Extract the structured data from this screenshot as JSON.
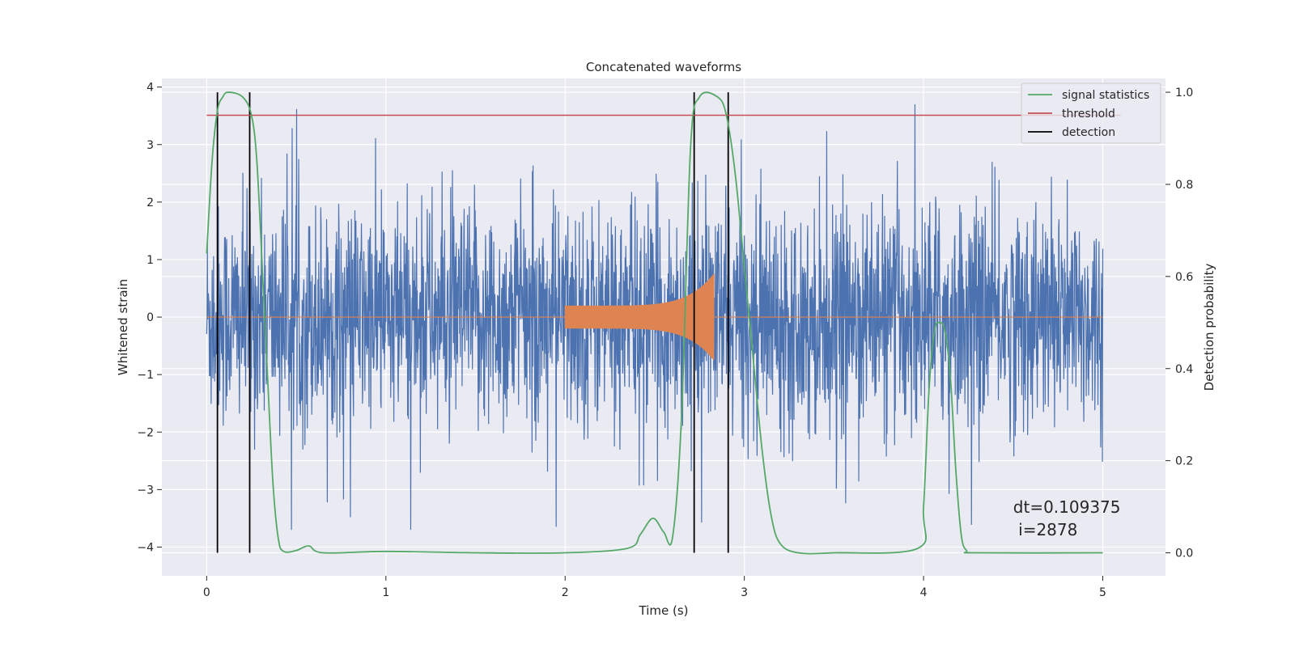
{
  "chart_data": {
    "type": "line",
    "title": "Concatenated waveforms",
    "xlabel": "Time (s)",
    "ylabel": "Whitened strain",
    "ylabel_right": "Detection probability",
    "xlim": [
      -0.25,
      5.35
    ],
    "ylim": [
      -4.5,
      4.15
    ],
    "ylim_right": [
      -0.05,
      1.03
    ],
    "x_ticks": [
      0,
      1,
      2,
      3,
      4,
      5
    ],
    "x_tick_labels": [
      "0",
      "1",
      "2",
      "3",
      "4",
      "5"
    ],
    "y_ticks": [
      -4,
      -3,
      -2,
      -1,
      0,
      1,
      2,
      3,
      4
    ],
    "y_tick_labels": [
      "−4",
      "−3",
      "−2",
      "−1",
      "0",
      "1",
      "2",
      "3",
      "4"
    ],
    "y_right_ticks": [
      0.0,
      0.2,
      0.4,
      0.6,
      0.8,
      1.0
    ],
    "y_right_tick_labels": [
      "0.0",
      "0.2",
      "0.4",
      "0.6",
      "0.8",
      "1.0"
    ],
    "grid": true,
    "legend_position": "top-right",
    "series": [
      {
        "name": "",
        "kind": "noisy-strain",
        "color": "#4c72b0",
        "x_range": [
          0,
          5
        ],
        "max_abs_amplitude": 3.7
      },
      {
        "name": "",
        "kind": "chirp-injection",
        "color": "#dd8452",
        "x_range": [
          0,
          5
        ],
        "chirp_start": 2.0,
        "chirp_end": 2.83,
        "amplitude_start": 0.2,
        "amplitude_end": 0.75
      },
      {
        "name": "signal statistics",
        "axis": "right",
        "color": "#55a868",
        "x": [
          0,
          0.03,
          0.06,
          0.09,
          0.12,
          0.2,
          0.25,
          0.28,
          0.31,
          0.34,
          0.37,
          0.4,
          0.43,
          0.5,
          0.57,
          0.65,
          1.0,
          1.5,
          2.0,
          2.35,
          2.42,
          2.49,
          2.55,
          2.6,
          2.65,
          2.7,
          2.75,
          2.85,
          2.9,
          2.95,
          3.0,
          3.05,
          3.1,
          3.15,
          3.2,
          3.3,
          3.5,
          3.97,
          4.0,
          4.03,
          4.06,
          4.09,
          4.12,
          4.15,
          4.18,
          4.21,
          4.24,
          4.3,
          5.0
        ],
        "y": [
          0.65,
          0.85,
          0.96,
          0.99,
          1.0,
          0.99,
          0.95,
          0.85,
          0.62,
          0.38,
          0.15,
          0.03,
          0.003,
          0.005,
          0.015,
          0.0,
          0.003,
          0.0,
          0.0,
          0.01,
          0.04,
          0.075,
          0.045,
          0.035,
          0.3,
          0.88,
          0.99,
          0.99,
          0.95,
          0.82,
          0.62,
          0.42,
          0.22,
          0.08,
          0.02,
          0.0,
          0.0,
          0.01,
          0.1,
          0.35,
          0.48,
          0.5,
          0.48,
          0.38,
          0.18,
          0.04,
          0.005,
          0.0,
          0.0
        ]
      },
      {
        "name": "threshold",
        "axis": "right",
        "color": "#c44e52",
        "x": [
          0,
          5.1
        ],
        "y": [
          0.95,
          0.95
        ]
      }
    ],
    "detections": {
      "name": "detection",
      "color": "#000000",
      "x": [
        0.06,
        0.24,
        2.72,
        2.91
      ],
      "y_range": [
        0.0,
        1.0
      ]
    },
    "annotation": {
      "line1": "dt=0.109375",
      "line2": " i=2878",
      "x": 4.5,
      "y": -3.4
    }
  }
}
